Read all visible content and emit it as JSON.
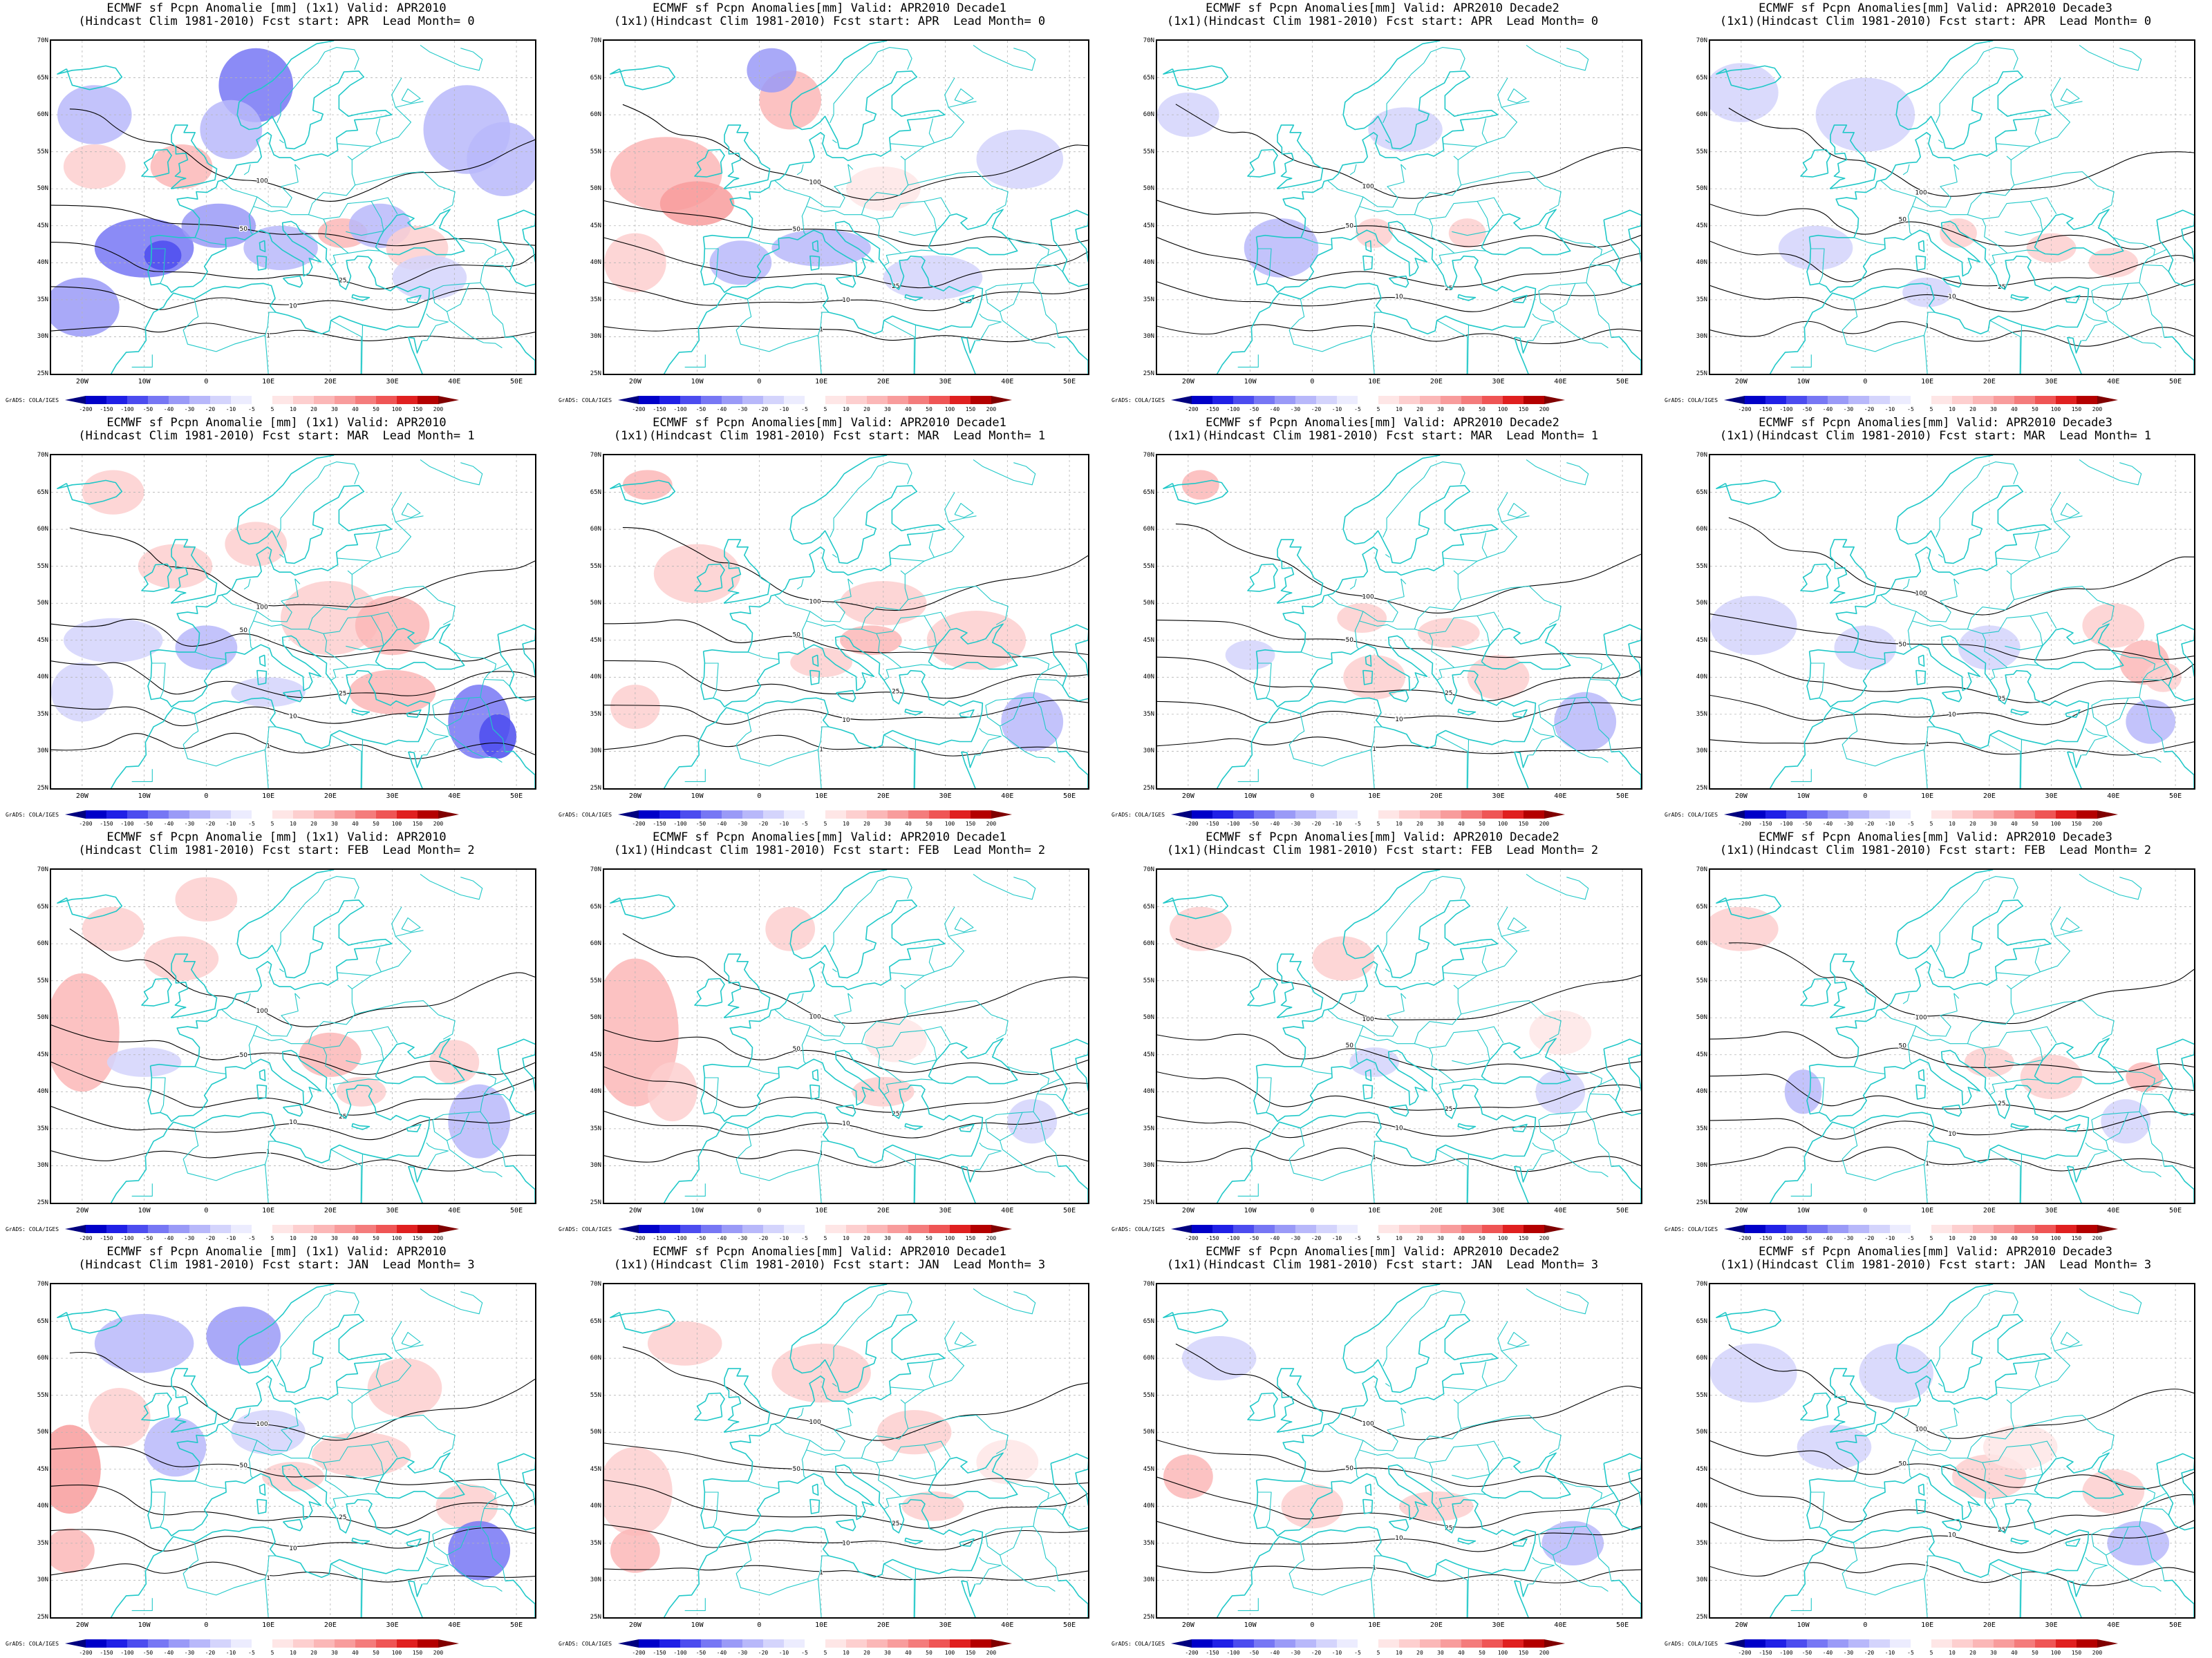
{
  "figure": {
    "panels": [
      {
        "title1": "ECMWF sf Pcpn Anomalie [mm] (1x1) Valid: APR2010",
        "title2": "(Hindcast Clim 1981-2010) Fcst start: APR  Lead Month= 0",
        "variant": 0
      },
      {
        "title1": "ECMWF sf Pcpn Anomalies[mm] Valid: APR2010 Decade1",
        "title2": "(1x1)(Hindcast Clim 1981-2010) Fcst start: APR  Lead Month= 0",
        "variant": 1
      },
      {
        "title1": "ECMWF sf Pcpn Anomalies[mm] Valid: APR2010 Decade2",
        "title2": "(1x1)(Hindcast Clim 1981-2010) Fcst start: APR  Lead Month= 0",
        "variant": 2
      },
      {
        "title1": "ECMWF sf Pcpn Anomalies[mm] Valid: APR2010 Decade3",
        "title2": "(1x1)(Hindcast Clim 1981-2010) Fcst start: APR  Lead Month= 0",
        "variant": 3
      },
      {
        "title1": "ECMWF sf Pcpn Anomalie [mm] (1x1) Valid: APR2010",
        "title2": "(Hindcast Clim 1981-2010) Fcst start: MAR  Lead Month= 1",
        "variant": 4
      },
      {
        "title1": "ECMWF sf Pcpn Anomalies[mm] Valid: APR2010 Decade1",
        "title2": "(1x1)(Hindcast Clim 1981-2010) Fcst start: MAR  Lead Month= 1",
        "variant": 5
      },
      {
        "title1": "ECMWF sf Pcpn Anomalies[mm] Valid: APR2010 Decade2",
        "title2": "(1x1)(Hindcast Clim 1981-2010) Fcst start: MAR  Lead Month= 1",
        "variant": 6
      },
      {
        "title1": "ECMWF sf Pcpn Anomalies[mm] Valid: APR2010 Decade3",
        "title2": "(1x1)(Hindcast Clim 1981-2010) Fcst start: MAR  Lead Month= 1",
        "variant": 7
      },
      {
        "title1": "ECMWF sf Pcpn Anomalie [mm] (1x1) Valid: APR2010",
        "title2": "(Hindcast Clim 1981-2010) Fcst start: FEB  Lead Month= 2",
        "variant": 8
      },
      {
        "title1": "ECMWF sf Pcpn Anomalies[mm] Valid: APR2010 Decade1",
        "title2": "(1x1)(Hindcast Clim 1981-2010) Fcst start: FEB  Lead Month= 2",
        "variant": 9
      },
      {
        "title1": "ECMWF sf Pcpn Anomalies[mm] Valid: APR2010 Decade2",
        "title2": "(1x1)(Hindcast Clim 1981-2010) Fcst start: FEB  Lead Month= 2",
        "variant": 10
      },
      {
        "title1": "ECMWF sf Pcpn Anomalies[mm] Valid: APR2010 Decade3",
        "title2": "(1x1)(Hindcast Clim 1981-2010) Fcst start: FEB  Lead Month= 2",
        "variant": 11
      },
      {
        "title1": "ECMWF sf Pcpn Anomalie [mm] (1x1) Valid: APR2010",
        "title2": "(Hindcast Clim 1981-2010) Fcst start: JAN  Lead Month= 3",
        "variant": 12
      },
      {
        "title1": "ECMWF sf Pcpn Anomalies[mm] Valid: APR2010 Decade1",
        "title2": "(1x1)(Hindcast Clim 1981-2010) Fcst start: JAN  Lead Month= 3",
        "variant": 13
      },
      {
        "title1": "ECMWF sf Pcpn Anomalies[mm] Valid: APR2010 Decade2",
        "title2": "(1x1)(Hindcast Clim 1981-2010) Fcst start: JAN  Lead Month= 3",
        "variant": 14
      },
      {
        "title1": "ECMWF sf Pcpn Anomalies[mm] Valid: APR2010 Decade3",
        "title2": "(1x1)(Hindcast Clim 1981-2010) Fcst start: JAN  Lead Month= 3",
        "variant": 15
      }
    ],
    "lat_labels": [
      "70N",
      "65N",
      "60N",
      "55N",
      "50N",
      "45N",
      "40N",
      "35N",
      "30N",
      "25N"
    ],
    "lon_labels": [
      "20W",
      "10W",
      "0",
      "10E",
      "20E",
      "30E",
      "40E",
      "50E"
    ],
    "credit": "GrADS: COLA/IGES",
    "colorbar_labels": [
      "-200",
      "-150",
      "-100",
      "-50",
      "-40",
      "-30",
      "-20",
      "-10",
      "-5",
      "5",
      "10",
      "20",
      "30",
      "40",
      "50",
      "100",
      "150",
      "200"
    ],
    "colorbar_colors": [
      "#00007f",
      "#0000c8",
      "#2020e6",
      "#4c4cef",
      "#7777f4",
      "#9a9af7",
      "#b8b8fa",
      "#d4d4fc",
      "#ececfe",
      "#ffffff",
      "#fee6e6",
      "#fdcfcf",
      "#fbb7b7",
      "#f89c9c",
      "#f47c7c",
      "#ef5555",
      "#e02020",
      "#b40000",
      "#800000"
    ],
    "colors": {
      "coast": "#20c8c8",
      "contour": "#000000",
      "grid": "#b4b4b4"
    }
  }
}
